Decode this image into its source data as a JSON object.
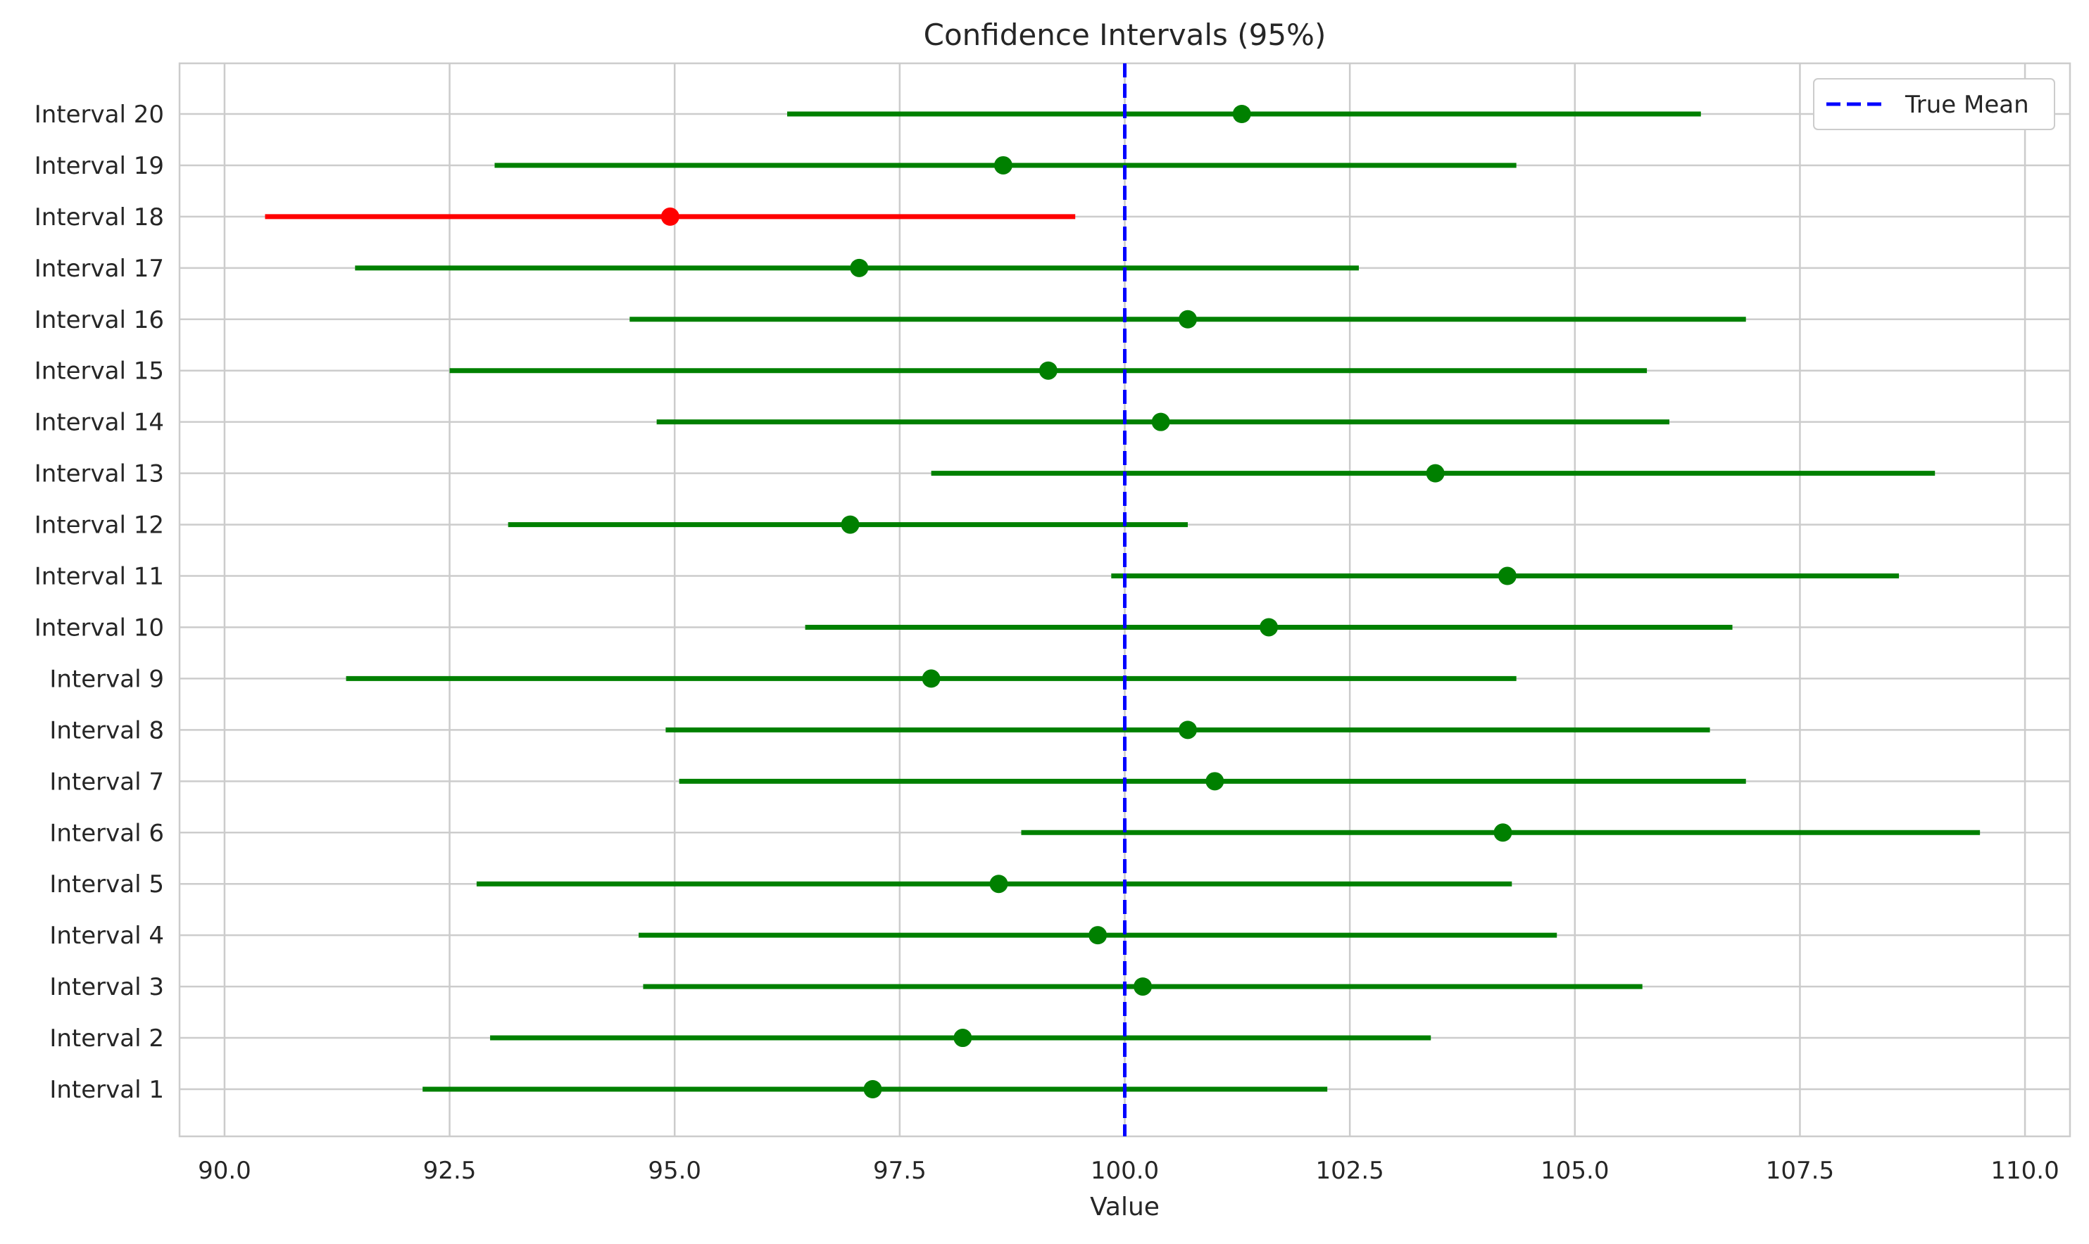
{
  "chart_data": {
    "type": "interval",
    "title": "Confidence Intervals (95%)",
    "xlabel": "Value",
    "ylabel": "",
    "xlim": [
      89.5,
      110.5
    ],
    "x_ticks": [
      "90.0",
      "92.5",
      "95.0",
      "97.5",
      "100.0",
      "102.5",
      "105.0",
      "107.5",
      "110.0"
    ],
    "x_tick_values": [
      90.0,
      92.5,
      95.0,
      97.5,
      100.0,
      102.5,
      105.0,
      107.5,
      110.0
    ],
    "grid": true,
    "legend_position": "top-right",
    "reference_line": {
      "name": "True Mean",
      "value": 100.0,
      "color": "#0000ff",
      "style": "dashed"
    },
    "colors": {
      "contains_mean": "#008000",
      "misses_mean": "#ff0000"
    },
    "intervals": [
      {
        "label": "Interval 1",
        "lower": 92.2,
        "mean": 97.2,
        "upper": 102.25
      },
      {
        "label": "Interval 2",
        "lower": 92.95,
        "mean": 98.2,
        "upper": 103.4
      },
      {
        "label": "Interval 3",
        "lower": 94.65,
        "mean": 100.2,
        "upper": 105.75
      },
      {
        "label": "Interval 4",
        "lower": 94.6,
        "mean": 99.7,
        "upper": 104.8
      },
      {
        "label": "Interval 5",
        "lower": 92.8,
        "mean": 98.6,
        "upper": 104.3
      },
      {
        "label": "Interval 6",
        "lower": 98.85,
        "mean": 104.2,
        "upper": 109.5
      },
      {
        "label": "Interval 7",
        "lower": 95.05,
        "mean": 101.0,
        "upper": 106.9
      },
      {
        "label": "Interval 8",
        "lower": 94.9,
        "mean": 100.7,
        "upper": 106.5
      },
      {
        "label": "Interval 9",
        "lower": 91.35,
        "mean": 97.85,
        "upper": 104.35
      },
      {
        "label": "Interval 10",
        "lower": 96.45,
        "mean": 101.6,
        "upper": 106.75
      },
      {
        "label": "Interval 11",
        "lower": 99.85,
        "mean": 104.25,
        "upper": 108.6
      },
      {
        "label": "Interval 12",
        "lower": 93.15,
        "mean": 96.95,
        "upper": 100.7
      },
      {
        "label": "Interval 13",
        "lower": 97.85,
        "mean": 103.45,
        "upper": 109.0
      },
      {
        "label": "Interval 14",
        "lower": 94.8,
        "mean": 100.4,
        "upper": 106.05
      },
      {
        "label": "Interval 15",
        "lower": 92.5,
        "mean": 99.15,
        "upper": 105.8
      },
      {
        "label": "Interval 16",
        "lower": 94.5,
        "mean": 100.7,
        "upper": 106.9
      },
      {
        "label": "Interval 17",
        "lower": 91.45,
        "mean": 97.05,
        "upper": 102.6
      },
      {
        "label": "Interval 18",
        "lower": 90.45,
        "mean": 94.95,
        "upper": 99.45
      },
      {
        "label": "Interval 19",
        "lower": 93.0,
        "mean": 98.65,
        "upper": 104.35
      },
      {
        "label": "Interval 20",
        "lower": 96.25,
        "mean": 101.3,
        "upper": 106.4
      }
    ]
  }
}
